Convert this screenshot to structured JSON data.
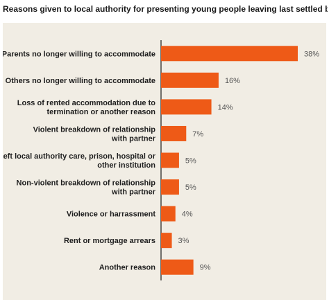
{
  "title": "Reasons given to local authority for presenting young people leaving last settled base.",
  "colors": {
    "bar": "#ee5a17",
    "axis": "#1a1a1a",
    "panel": "#f1ede4",
    "text": "#1f1f1f",
    "value_text": "#555555"
  },
  "chart_data": {
    "type": "bar",
    "orientation": "horizontal",
    "title": "Reasons given to local authority for presenting young people leaving last settled base.",
    "categories": [
      [
        "Parents no longer willing to accommodate"
      ],
      [
        "Others no longer willing to accommodate"
      ],
      [
        "Loss of rented accommodation due to",
        "termination or another reason"
      ],
      [
        "Violent breakdown of relationship",
        "with partner"
      ],
      [
        "Left local authority care, prison, hospital or",
        "other institution"
      ],
      [
        "Non-violent breakdown of relationship",
        "with partner"
      ],
      [
        "Violence or harrassment"
      ],
      [
        "Rent or mortgage arrears"
      ],
      [
        "Another reason"
      ]
    ],
    "values": [
      38,
      16,
      14,
      7,
      5,
      5,
      4,
      3,
      9
    ],
    "value_labels": [
      "38%",
      "16%",
      "14%",
      "7%",
      "5%",
      "5%",
      "4%",
      "3%",
      "9%"
    ],
    "xlim": [
      0,
      40
    ],
    "grid": false,
    "legend": "none"
  }
}
